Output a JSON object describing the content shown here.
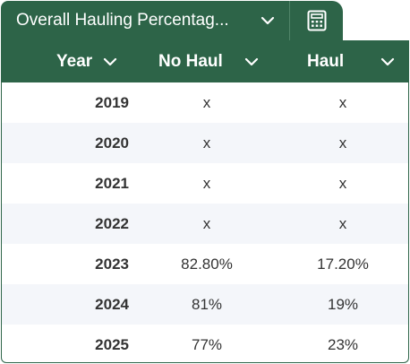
{
  "tab": {
    "title": "Overall Hauling Percentag...",
    "calculator_icon": "calculator-icon",
    "chevron_icon": "chevron-down-icon"
  },
  "table": {
    "columns": [
      {
        "label": "Year"
      },
      {
        "label": "No Haul"
      },
      {
        "label": "Haul"
      }
    ],
    "rows": [
      {
        "year": "2019",
        "no_haul": "x",
        "haul": "x"
      },
      {
        "year": "2020",
        "no_haul": "x",
        "haul": "x"
      },
      {
        "year": "2021",
        "no_haul": "x",
        "haul": "x"
      },
      {
        "year": "2022",
        "no_haul": "x",
        "haul": "x"
      },
      {
        "year": "2023",
        "no_haul": "82.80%",
        "haul": "17.20%"
      },
      {
        "year": "2024",
        "no_haul": "81%",
        "haul": "19%"
      },
      {
        "year": "2025",
        "no_haul": "77%",
        "haul": "23%"
      }
    ]
  },
  "colors": {
    "header_green": "#2d6448",
    "row_alt": "#f4f6fa",
    "text": "#333333"
  }
}
